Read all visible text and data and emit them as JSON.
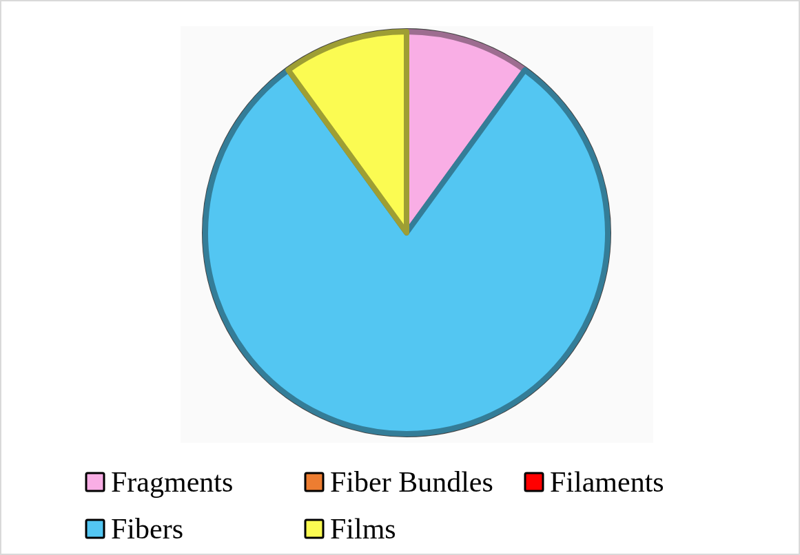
{
  "chart_data": {
    "type": "pie",
    "categories": [
      "Fragments",
      "Fiber Bundles",
      "Filaments",
      "Fibers",
      "Films"
    ],
    "values": [
      10,
      0,
      0,
      80,
      10
    ],
    "colors": [
      "#f9aee5",
      "#ed7d31",
      "#ff0000",
      "#53c6f2",
      "#fbfb52"
    ],
    "legend": "bottom"
  }
}
